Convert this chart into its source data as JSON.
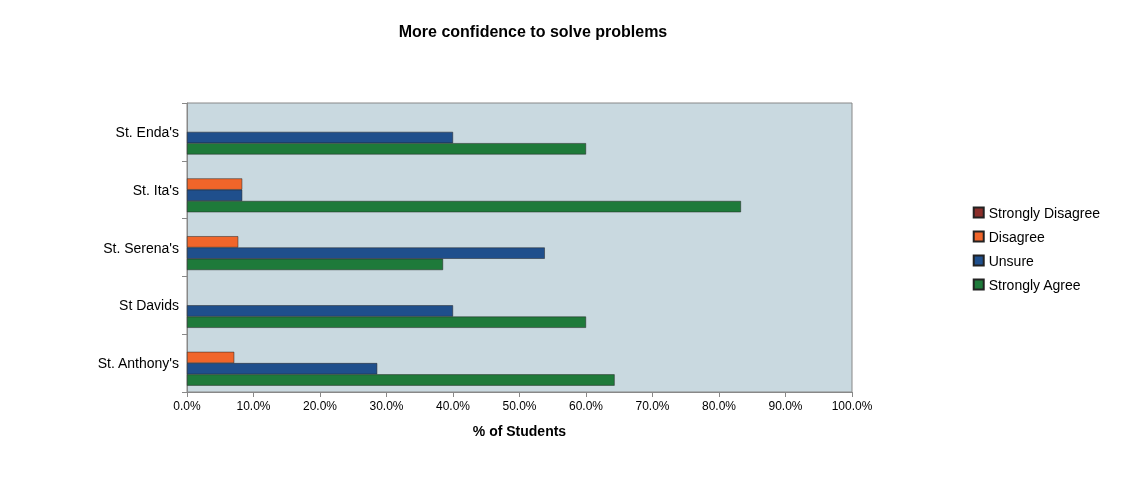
{
  "chart_data": {
    "type": "bar",
    "orientation": "horizontal",
    "title": "More confidence to solve problems",
    "xlabel": "% of Students",
    "categories": [
      "St. Enda's",
      "St. Ita's",
      "St. Serena's",
      "St Davids",
      "St. Anthony's"
    ],
    "series": [
      {
        "name": "Strongly Disagree",
        "color": "#8b2e2a",
        "values": [
          null,
          null,
          null,
          null,
          null
        ]
      },
      {
        "name": "Disagree",
        "color": "#f0652a",
        "values": [
          null,
          8.3,
          7.7,
          null,
          7.1
        ]
      },
      {
        "name": "Unsure",
        "color": "#1f4f8c",
        "values": [
          40,
          8.3,
          53.8,
          40,
          28.6
        ]
      },
      {
        "name": "Strongly Agree",
        "color": "#1e7a3a",
        "values": [
          60,
          83.3,
          38.5,
          60,
          64.3
        ]
      }
    ],
    "xlim": [
      0,
      100
    ],
    "xticks": [
      {
        "value": 0,
        "label": "0.0%"
      },
      {
        "value": 10,
        "label": "10.0%"
      },
      {
        "value": 20,
        "label": "20.0%"
      },
      {
        "value": 30,
        "label": "30.0%"
      },
      {
        "value": 40,
        "label": "40.0%"
      },
      {
        "value": 50,
        "label": "50.0%"
      },
      {
        "value": 60,
        "label": "60.0%"
      },
      {
        "value": 70,
        "label": "70.0%"
      },
      {
        "value": 80,
        "label": "80.0%"
      },
      {
        "value": 90,
        "label": "90.0%"
      },
      {
        "value": 100,
        "label": "100.0%"
      }
    ],
    "grid": false,
    "legend": "right"
  }
}
